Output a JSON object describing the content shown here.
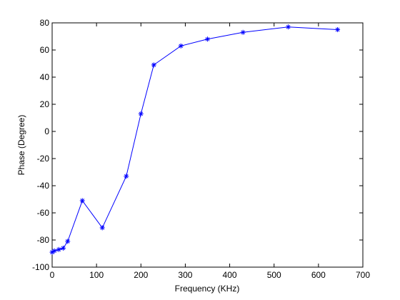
{
  "chart_data": {
    "type": "line",
    "title": "",
    "xlabel": "Frequency (KHz)",
    "ylabel": "Phase (Degree)",
    "xlim": [
      0,
      700
    ],
    "ylim": [
      -100,
      80
    ],
    "xticks": [
      0,
      100,
      200,
      300,
      400,
      500,
      600,
      700
    ],
    "yticks": [
      -100,
      -80,
      -60,
      -40,
      -20,
      0,
      20,
      40,
      60,
      80
    ],
    "grid": false,
    "legend": "none",
    "series": [
      {
        "color": "#0000ff",
        "marker": "asterisk",
        "x": [
          0,
          5,
          15,
          25,
          35,
          68,
          113,
          167,
          200,
          229,
          290,
          350,
          430,
          532,
          643
        ],
        "y": [
          -89,
          -88,
          -87,
          -86,
          -81,
          -51,
          -71,
          -33,
          13,
          49,
          63,
          68,
          73,
          77,
          75
        ]
      }
    ]
  }
}
